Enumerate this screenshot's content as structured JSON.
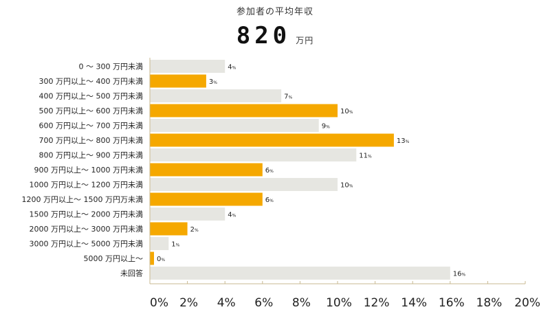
{
  "header": {
    "subtitle": "参加者の平均年収",
    "value": "820",
    "unit": "万円"
  },
  "colors": {
    "highlight": "#F5A800",
    "neutral": "#E6E6E1",
    "axis": "#C8B890",
    "text": "#222222"
  },
  "chart_data": {
    "type": "bar",
    "orientation": "horizontal",
    "categories": [
      "0 ～ 300 万円未満",
      "300 万円以上～ 400 万円未満",
      "400 万円以上～ 500 万円未満",
      "500 万円以上～ 600 万円未満",
      "600 万円以上～ 700 万円未満",
      "700 万円以上～ 800 万円未満",
      "800 万円以上～ 900 万円未満",
      "900 万円以上～ 1000 万円未満",
      "1000 万円以上～ 1200 万円未満",
      "1200 万円以上～ 1500 万円万未満",
      "1500 万円以上～ 2000 万円未満",
      "2000 万円以上～ 3000 万円未満",
      "3000 万円以上～ 5000 万円未満",
      "5000 万円以上～",
      "未回答"
    ],
    "values": [
      4,
      3,
      7,
      10,
      9,
      13,
      11,
      6,
      10,
      6,
      4,
      2,
      1,
      0,
      16
    ],
    "highlighted": [
      false,
      true,
      false,
      true,
      false,
      true,
      false,
      true,
      false,
      true,
      false,
      true,
      false,
      true,
      false
    ],
    "value_suffix": "%",
    "xlim": [
      0,
      20
    ],
    "xticks": [
      "0%",
      "2%",
      "4%",
      "6%",
      "8%",
      "10%",
      "12%",
      "14%",
      "16%",
      "18%",
      "20%"
    ],
    "grid": false
  }
}
